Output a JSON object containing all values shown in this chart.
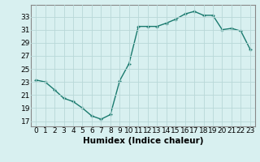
{
  "x": [
    0,
    1,
    2,
    3,
    4,
    5,
    6,
    7,
    8,
    9,
    10,
    11,
    12,
    13,
    14,
    15,
    16,
    17,
    18,
    19,
    20,
    21,
    22,
    23
  ],
  "y": [
    23.3,
    23.0,
    21.8,
    20.5,
    20.0,
    19.0,
    17.8,
    17.3,
    18.0,
    23.2,
    25.8,
    31.5,
    31.5,
    31.5,
    32.0,
    32.6,
    33.4,
    33.8,
    33.2,
    33.2,
    31.0,
    31.2,
    30.8,
    28.0
  ],
  "line_color": "#1a7a6e",
  "marker": "+",
  "bg_color": "#d8f0f0",
  "grid_color": "#b8d8d8",
  "xlabel": "Humidex (Indice chaleur)",
  "yticks": [
    17,
    19,
    21,
    23,
    25,
    27,
    29,
    31,
    33
  ],
  "xticks": [
    0,
    1,
    2,
    3,
    4,
    5,
    6,
    7,
    8,
    9,
    10,
    11,
    12,
    13,
    14,
    15,
    16,
    17,
    18,
    19,
    20,
    21,
    22,
    23
  ],
  "ylim": [
    16.2,
    34.8
  ],
  "xlim": [
    -0.5,
    23.5
  ],
  "xlabel_fontsize": 7.5,
  "tick_fontsize": 6.5,
  "linewidth": 1.0,
  "markersize": 3.5
}
